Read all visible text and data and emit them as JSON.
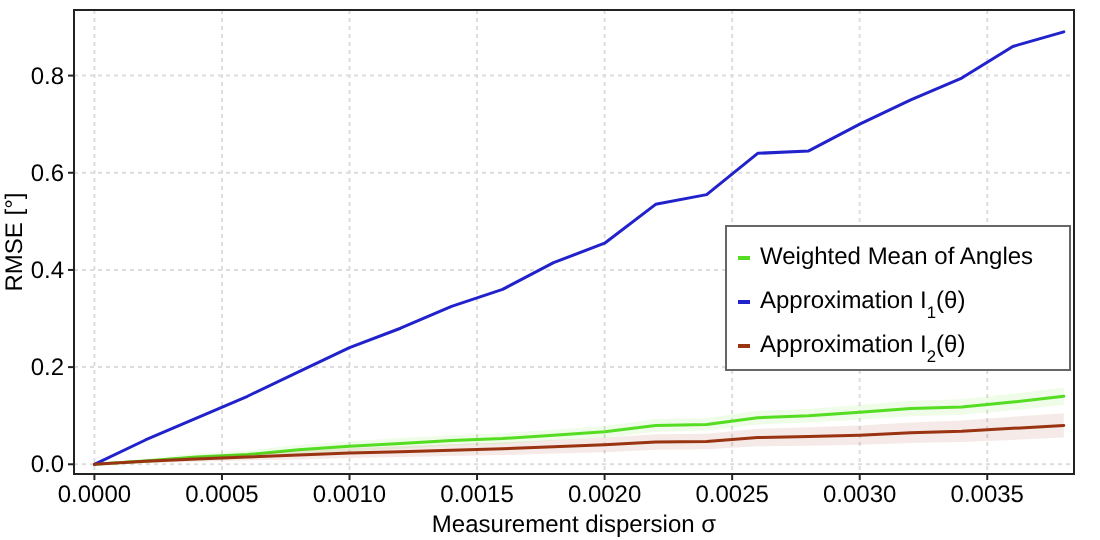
{
  "chart_data": {
    "type": "line",
    "xlabel": "Measurement dispersion σ",
    "ylabel": "RMSE [°]",
    "x": [
      0,
      0.0002,
      0.0004,
      0.0006,
      0.0008,
      0.001,
      0.0012,
      0.0014,
      0.0016,
      0.0018,
      0.002,
      0.0022,
      0.0024,
      0.0026,
      0.0028,
      0.003,
      0.0032,
      0.0034,
      0.0036,
      0.0038
    ],
    "series": [
      {
        "name": "Weighted Mean of Angles",
        "color": "#55dd22",
        "values": [
          0,
          0.007,
          0.015,
          0.02,
          0.03,
          0.037,
          0.043,
          0.049,
          0.053,
          0.06,
          0.067,
          0.08,
          0.082,
          0.096,
          0.1,
          0.107,
          0.115,
          0.118,
          0.128,
          0.14
        ],
        "lower": [
          0,
          0.002,
          0.008,
          0.012,
          0.02,
          0.027,
          0.032,
          0.038,
          0.042,
          0.049,
          0.055,
          0.067,
          0.069,
          0.082,
          0.086,
          0.092,
          0.099,
          0.102,
          0.111,
          0.122
        ],
        "upper": [
          0,
          0.012,
          0.022,
          0.028,
          0.04,
          0.047,
          0.054,
          0.06,
          0.064,
          0.071,
          0.079,
          0.093,
          0.095,
          0.11,
          0.114,
          0.122,
          0.131,
          0.134,
          0.145,
          0.158
        ]
      },
      {
        "name": "Approximation I$_{1}$(θ)",
        "color": "#2222cc",
        "values": [
          0,
          0.05,
          0.095,
          0.14,
          0.19,
          0.24,
          0.28,
          0.325,
          0.36,
          0.415,
          0.455,
          0.535,
          0.555,
          0.64,
          0.645,
          0.7,
          0.75,
          0.795,
          0.86,
          0.89
        ]
      },
      {
        "name": "Approximation I$_{2}$(θ)",
        "color": "#993311",
        "values": [
          0,
          0.006,
          0.011,
          0.015,
          0.019,
          0.023,
          0.026,
          0.029,
          0.032,
          0.036,
          0.04,
          0.046,
          0.047,
          0.055,
          0.057,
          0.06,
          0.065,
          0.068,
          0.074,
          0.08
        ],
        "lower": [
          0,
          0.002,
          0.005,
          0.008,
          0.01,
          0.013,
          0.015,
          0.017,
          0.019,
          0.022,
          0.025,
          0.03,
          0.031,
          0.037,
          0.038,
          0.04,
          0.044,
          0.046,
          0.05,
          0.055
        ],
        "upper": [
          0,
          0.01,
          0.017,
          0.022,
          0.028,
          0.033,
          0.037,
          0.041,
          0.045,
          0.05,
          0.055,
          0.062,
          0.063,
          0.073,
          0.076,
          0.08,
          0.086,
          0.09,
          0.098,
          0.105
        ]
      }
    ],
    "xlim": [
      -8e-05,
      0.00384
    ],
    "xticks": [
      {
        "value": 0,
        "label": "0.0000"
      },
      0.0005,
      {
        "value": 0.001,
        "label": "0.0010"
      },
      0.0015,
      {
        "value": 0.002,
        "label": "0.0020"
      },
      0.0025,
      {
        "value": 0.003,
        "label": "0.0030"
      },
      0.0035
    ],
    "ylim": [
      -0.02,
      0.935
    ],
    "yticks": [
      {
        "value": 0,
        "label": "0.0"
      },
      0.2,
      0.4,
      0.6,
      0.8
    ],
    "grid": true,
    "legend": "right",
    "line_style": "solid",
    "marker": "none"
  }
}
